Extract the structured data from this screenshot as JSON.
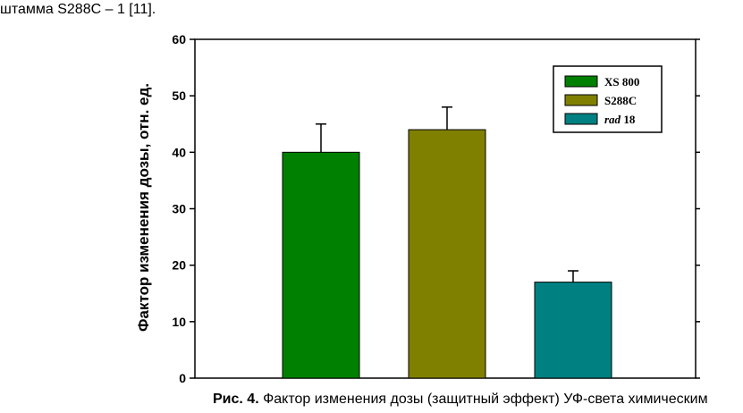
{
  "page": {
    "top_text": "штамма S288C – 1 [11].",
    "caption_label": "Рис. 4.",
    "caption_text": " Фактор изменения дозы (защитный эффект) УФ-света химическим"
  },
  "chart_data": {
    "type": "bar",
    "title": "",
    "xlabel": "",
    "ylabel": "Фактор изменения дозы, отн. ед.",
    "ylim": [
      0,
      60
    ],
    "yticks": [
      "0",
      "10",
      "20",
      "30",
      "40",
      "50",
      "60"
    ],
    "grid": false,
    "legend_position": "top-right",
    "categories": [
      "XS 800",
      "S288C",
      "rad 18"
    ],
    "series": [
      {
        "values": [
          40,
          44,
          17
        ],
        "errors": [
          5,
          4,
          2
        ]
      }
    ],
    "legend": [
      {
        "label": "XS 800",
        "name_part": "XS 800",
        "number_part": "",
        "italic": false,
        "color": "#008000"
      },
      {
        "label": "S288C",
        "name_part": "S288C",
        "number_part": "",
        "italic": false,
        "color": "#808000"
      },
      {
        "label": "rad 18",
        "name_part": "rad",
        "number_part": " 18",
        "italic": true,
        "color": "#008080"
      }
    ]
  }
}
